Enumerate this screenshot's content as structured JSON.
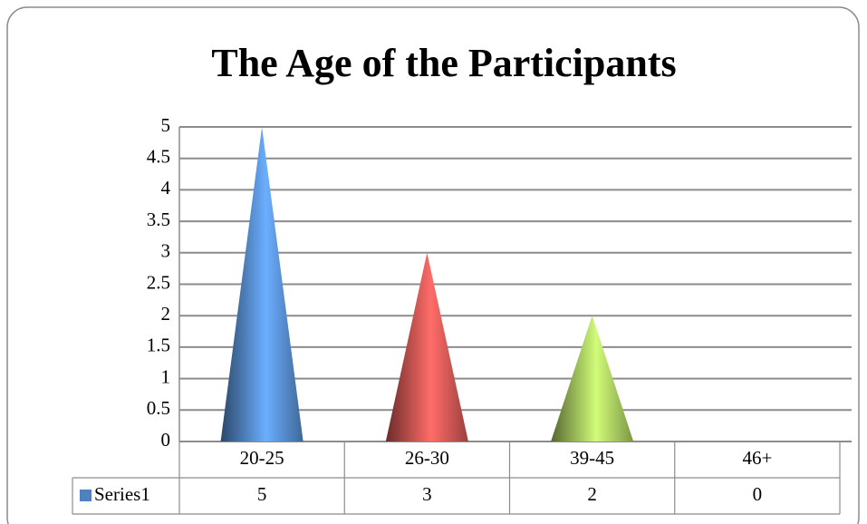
{
  "chart_data": {
    "type": "cone",
    "title": "The Age of the Participants",
    "categories": [
      "20-25",
      "26-30",
      "39-45",
      "46+"
    ],
    "series": [
      {
        "name": "Series1",
        "color": "#4f81bd",
        "values": [
          5,
          3,
          2,
          0
        ]
      }
    ],
    "point_colors": [
      "#4f81bd",
      "#c0504d",
      "#9bbb59"
    ],
    "ylim": [
      0,
      5
    ],
    "yticks": [
      0,
      0.5,
      1,
      1.5,
      2,
      2.5,
      3,
      3.5,
      4,
      4.5,
      5
    ],
    "grid": true,
    "data_table": true
  }
}
